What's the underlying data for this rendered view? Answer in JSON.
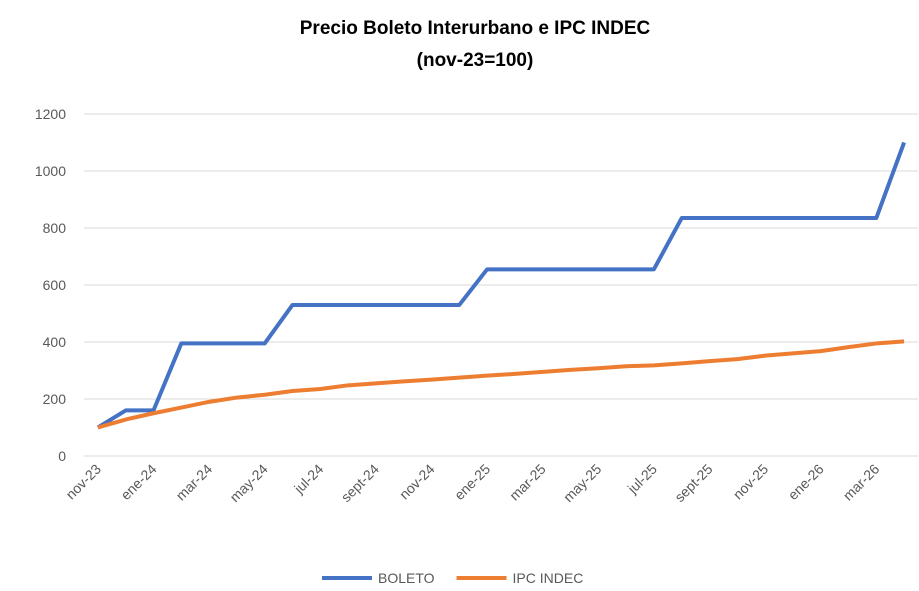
{
  "chart_data": {
    "type": "line",
    "title": "Precio Boleto Interurbano e IPC INDEC",
    "subtitle": "(nov-23=100)",
    "categories": [
      "nov-23",
      null,
      "ene-24",
      null,
      "mar-24",
      null,
      "may-24",
      null,
      "jul-24",
      null,
      "sept-24",
      null,
      "nov-24",
      null,
      "ene-25",
      null,
      "mar-25",
      null,
      "may-25",
      null,
      "jul-25",
      null,
      "sept-25",
      null,
      "nov-25",
      null,
      "ene-26",
      null,
      "mar-26",
      null
    ],
    "series": [
      {
        "name": "BOLETO",
        "color": "#4472c4",
        "values": [
          100,
          160,
          160,
          395,
          395,
          395,
          395,
          530,
          530,
          530,
          530,
          530,
          530,
          530,
          655,
          655,
          655,
          655,
          655,
          655,
          655,
          835,
          835,
          835,
          835,
          835,
          835,
          835,
          835,
          1100
        ]
      },
      {
        "name": "IPC INDEC",
        "color": "#ed7d31",
        "values": [
          100,
          128,
          150,
          170,
          190,
          205,
          215,
          228,
          235,
          248,
          255,
          262,
          268,
          275,
          282,
          288,
          295,
          302,
          308,
          315,
          318,
          325,
          333,
          340,
          352,
          360,
          368,
          382,
          395,
          402
        ]
      }
    ],
    "ylim": [
      0,
      1200
    ],
    "yticks": [
      0,
      200,
      400,
      600,
      800,
      1000,
      1200
    ],
    "grid": true,
    "legend": "bottom"
  }
}
